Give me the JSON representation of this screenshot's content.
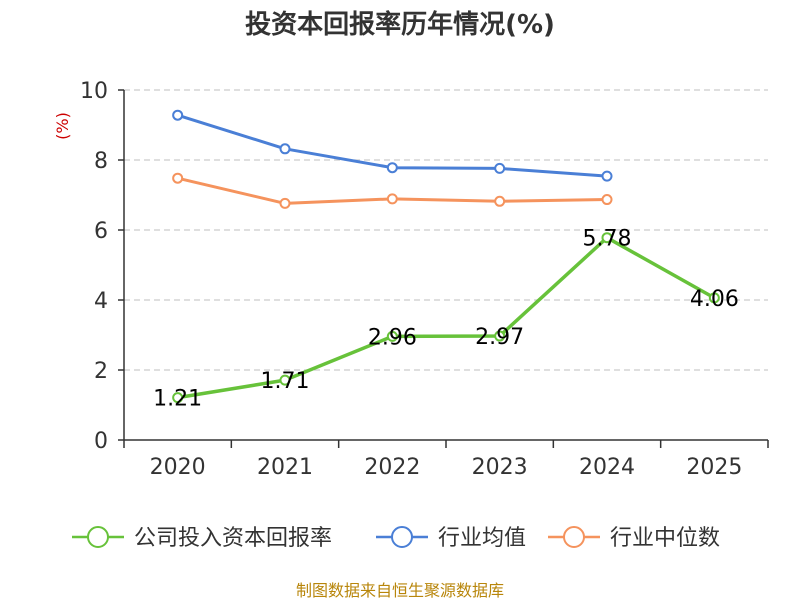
{
  "chart_data": {
    "type": "line",
    "title": "投资本回报率历年情况(%)",
    "ylabel": "(%)",
    "categories": [
      "2020",
      "2021",
      "2022",
      "2023",
      "2024",
      "2025"
    ],
    "ylim": [
      0,
      10
    ],
    "yticks": [
      0,
      2,
      4,
      6,
      8,
      10
    ],
    "grid": true,
    "legend_position": "bottom",
    "series": [
      {
        "name": "公司投入资本回报率",
        "color": "#67c23a",
        "values": [
          1.21,
          1.71,
          2.96,
          2.97,
          5.78,
          4.06
        ],
        "labels": [
          "1.21",
          "1.71",
          "2.96",
          "2.97",
          "5.78",
          "4.06"
        ]
      },
      {
        "name": "行业均值",
        "color": "#4a7fd6",
        "values": [
          9.28,
          8.32,
          7.78,
          7.76,
          7.54,
          null
        ]
      },
      {
        "name": "行业中位数",
        "color": "#f5935d",
        "values": [
          7.48,
          6.76,
          6.89,
          6.82,
          6.87,
          null
        ]
      }
    ]
  },
  "source": "制图数据来自恒生聚源数据库"
}
